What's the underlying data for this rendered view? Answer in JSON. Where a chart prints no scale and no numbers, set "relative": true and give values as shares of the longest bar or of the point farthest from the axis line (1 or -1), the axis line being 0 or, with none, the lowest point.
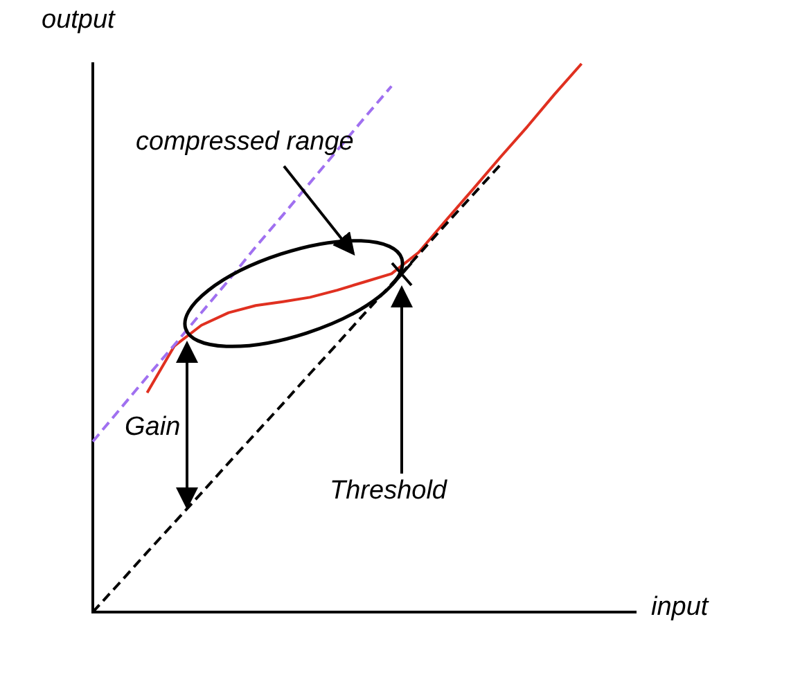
{
  "chart_data": {
    "type": "line",
    "relative": true,
    "xlabel": "input",
    "ylabel": "output",
    "annotations": [
      "compressed range",
      "Gain",
      "Threshold"
    ],
    "categories": [
      null,
      null,
      null,
      null,
      null,
      null,
      null,
      null,
      null,
      null,
      null,
      null,
      null,
      null,
      null,
      null,
      null,
      null,
      null,
      null,
      null
    ],
    "series": [
      {
        "color": "#000000",
        "line_style": "dashed",
        "values": [
          0,
          0.054,
          0.109,
          0.163,
          0.217,
          0.272,
          0.326,
          0.38,
          0.435,
          0.489,
          0.544,
          0.598,
          0.652,
          0.707,
          0.761,
          0.815,
          null,
          null,
          null,
          null,
          null
        ]
      },
      {
        "color": "#a070f0",
        "line_style": "dashed",
        "values": [
          0.311,
          0.37,
          0.429,
          0.487,
          0.546,
          0.605,
          0.666,
          0.724,
          0.783,
          0.842,
          0.901,
          0.959,
          null,
          null,
          null,
          null,
          null,
          null,
          null,
          null,
          null
        ]
      },
      {
        "color": "#e03020",
        "line_style": "solid",
        "values": [
          null,
          null,
          0.4,
          0.485,
          0.523,
          0.546,
          0.559,
          0.566,
          0.574,
          0.587,
          0.602,
          0.617,
          0.656,
          0.714,
          0.771,
          0.829,
          0.885,
          0.944,
          1.0,
          null,
          null
        ]
      }
    ],
    "legend": false,
    "grid": false,
    "marker": "none"
  }
}
